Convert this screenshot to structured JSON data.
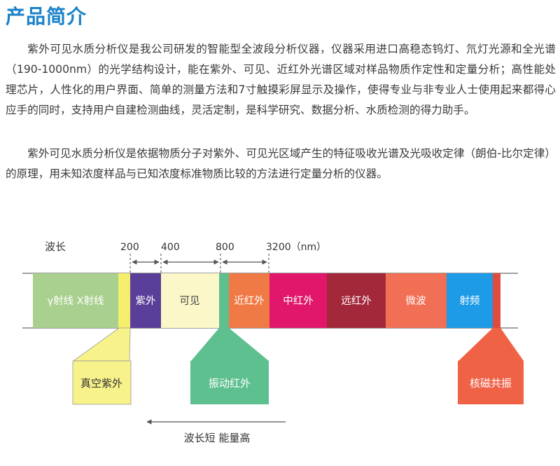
{
  "title": "产品简介",
  "paragraphs": [
    "紫外可见水质分析仪是我公司研发的智能型全波段分析仪器，仪器采用进口高稳态钨灯、氘灯光源和全光谱（190-1000nm）的光学结构设计，能在紫外、可见、近红外光谱区域对样品物质作定性和定量分析；高性能处理芯片，人性化的用户界面、简单的测量方法和7寸触摸彩屏显示及操作，使得专业与非专业人士使用起来都得心应手的同时，支持用户自建检测曲线，灵活定制，是科学研究、数据分析、水质检测的得力助手。",
    "紫外可见水质分析仪是依据物质分子对紫外、可见光区域产生的特征吸收光谱及光吸收定律（朗伯-比尔定律）的原理，用未知浓度样品与已知浓度标准物质比较的方法进行定量分析的仪器。"
  ],
  "spectrum": {
    "wavelength_label": "波长",
    "ticks": [
      "200",
      "400",
      "800",
      "3200（nm）"
    ],
    "bands": [
      {
        "label": "γ射线 X射线",
        "color": "#a9d08e"
      },
      {
        "label": "",
        "color": "#f5ee6c"
      },
      {
        "label": "紫外",
        "color": "#5a3f9a"
      },
      {
        "label": "可见",
        "color": "#fbf7c8"
      },
      {
        "label": "",
        "color": "#5fc08f"
      },
      {
        "label": "近红外",
        "color": "#f07a46"
      },
      {
        "label": "中红外",
        "color": "#e0176a"
      },
      {
        "label": "远红外",
        "color": "#a3283a"
      },
      {
        "label": "微波",
        "color": "#f06f55"
      },
      {
        "label": "射频",
        "color": "#1e9be6"
      },
      {
        "label": "",
        "color": "#e04b3f"
      }
    ],
    "callouts": [
      {
        "label": "真空紫外",
        "color": "#f7f28a"
      },
      {
        "label": "振动红外",
        "color": "#5fc08f"
      },
      {
        "label": "核磁共振",
        "color": "#f06246"
      }
    ],
    "arrow_label": "波长短 能量高"
  }
}
